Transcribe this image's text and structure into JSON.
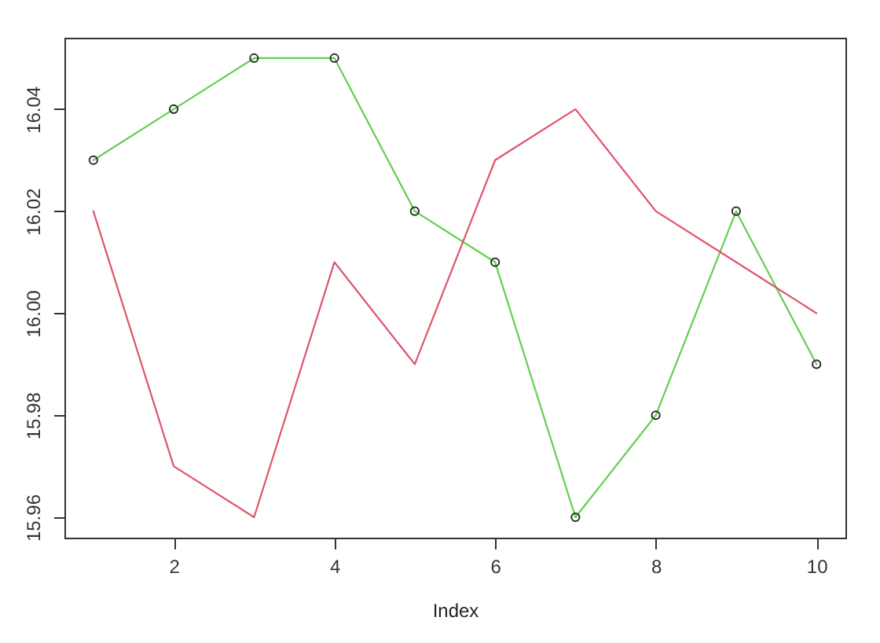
{
  "chart_data": {
    "type": "line",
    "xlabel": "Index",
    "x": [
      1,
      2,
      3,
      4,
      5,
      6,
      7,
      8,
      9,
      10
    ],
    "xlim": [
      0.64,
      10.36
    ],
    "xticks": [
      2,
      4,
      6,
      8,
      10
    ],
    "ylim": [
      15.956,
      16.054
    ],
    "yticks": [
      15.96,
      15.98,
      {
        "value": 16,
        "label": "16.00"
      },
      16.02,
      16.04
    ],
    "marker": "circle",
    "series": [
      {
        "color": "#61d04f",
        "values": [
          16.03,
          16.04,
          16.05,
          16.05,
          16.02,
          16.01,
          15.96,
          15.98,
          16.02,
          15.99
        ]
      },
      {
        "color": "#df536b",
        "marker": "none",
        "values": [
          16.02,
          15.97,
          15.96,
          16.01,
          15.99,
          16.03,
          16.04,
          16.02,
          16.01,
          16.0
        ]
      }
    ]
  }
}
